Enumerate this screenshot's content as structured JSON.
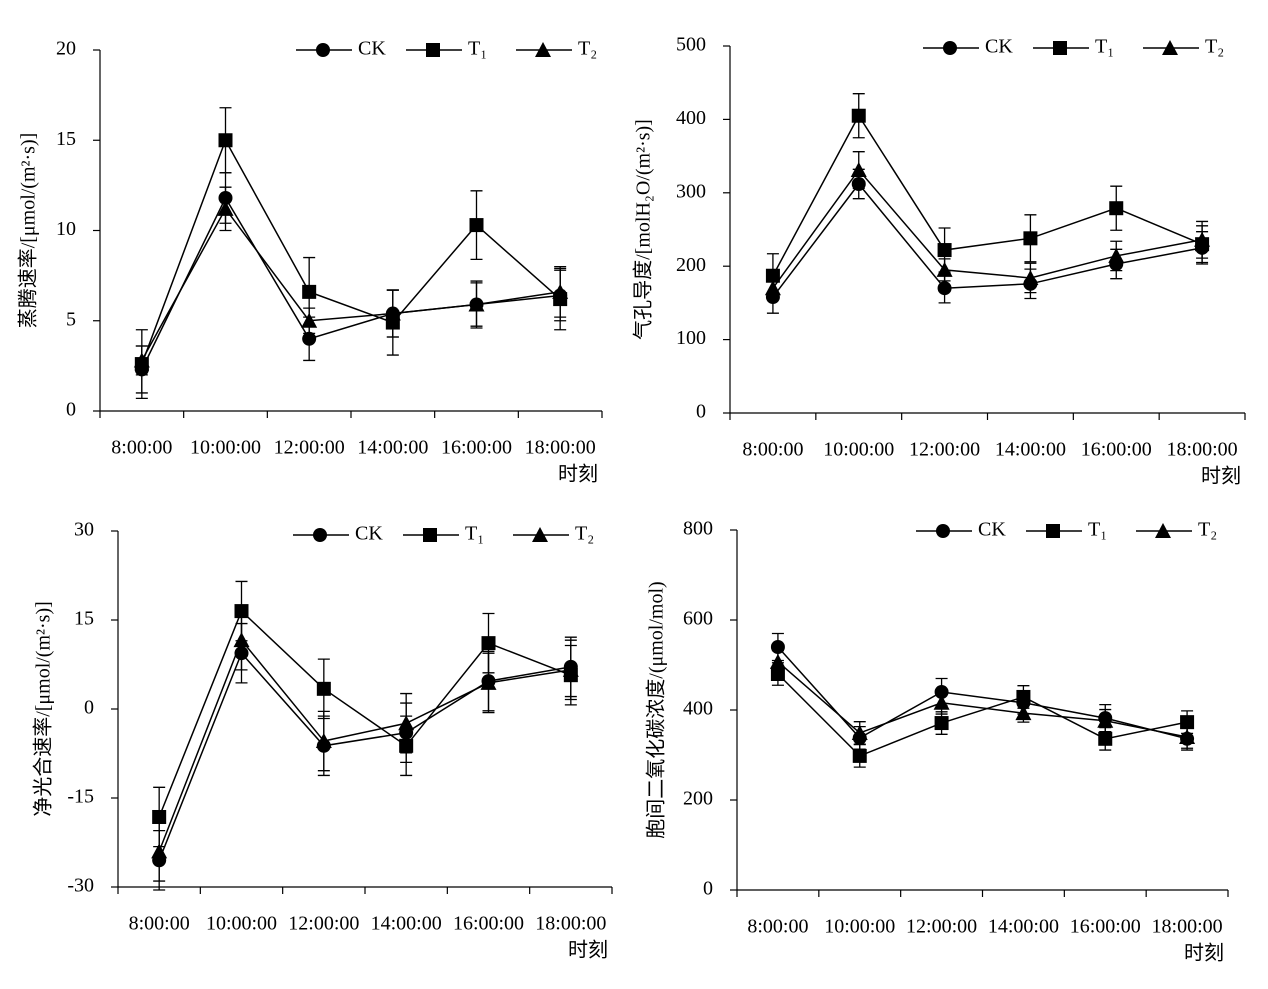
{
  "chart_data": [
    {
      "type": "line",
      "y_label": "蒸腾速率/[μmol/(m²·s)]",
      "x_label": "时刻",
      "categories": [
        "8:00:00",
        "10:00:00",
        "12:00:00",
        "14:00:00",
        "16:00:00",
        "18:00:00"
      ],
      "ylim": [
        0,
        20
      ],
      "yticks": [
        0,
        5,
        10,
        15,
        20
      ],
      "legend": "top-right",
      "series": [
        {
          "name": "CK",
          "color": "#000000",
          "marker": "circle",
          "values": [
            2.3,
            11.8,
            4.0,
            5.4,
            5.9,
            6.4
          ],
          "errors": [
            1.3,
            1.4,
            1.2,
            1.3,
            1.2,
            1.4
          ]
        },
        {
          "name": "T₁",
          "color": "#000000",
          "marker": "square",
          "values": [
            2.6,
            15.0,
            6.6,
            4.9,
            10.3,
            6.2
          ],
          "errors": [
            1.9,
            1.8,
            1.9,
            1.8,
            1.9,
            1.7
          ]
        },
        {
          "name": "T₂",
          "color": "#000000",
          "marker": "triangle",
          "values": [
            2.8,
            11.2,
            5.0,
            5.4,
            5.9,
            6.6
          ],
          "errors": [
            0.8,
            1.2,
            0.7,
            1.3,
            1.3,
            1.4
          ]
        }
      ]
    },
    {
      "type": "line",
      "y_label": "气孔导度/[molH₂O/(m²·s)]",
      "x_label": "时刻",
      "categories": [
        "8:00:00",
        "10:00:00",
        "12:00:00",
        "14:00:00",
        "16:00:00",
        "18:00:00"
      ],
      "ylim": [
        0,
        500
      ],
      "yticks": [
        0,
        100,
        200,
        300,
        400,
        500
      ],
      "legend": "top-right",
      "series": [
        {
          "name": "CK",
          "color": "#000000",
          "marker": "circle",
          "values": [
            158,
            312,
            170,
            176,
            203,
            225
          ],
          "errors": [
            22,
            20,
            20,
            20,
            20,
            22
          ]
        },
        {
          "name": "T₁",
          "color": "#000000",
          "marker": "square",
          "values": [
            187,
            405,
            222,
            238,
            279,
            230
          ],
          "errors": [
            30,
            30,
            30,
            32,
            30,
            25
          ]
        },
        {
          "name": "T₂",
          "color": "#000000",
          "marker": "triangle",
          "values": [
            170,
            331,
            195,
            184,
            214,
            236
          ],
          "errors": [
            15,
            25,
            15,
            20,
            20,
            25
          ]
        }
      ]
    },
    {
      "type": "line",
      "y_label": "净光合速率/[μmol/(m²·s)]",
      "x_label": "时刻",
      "categories": [
        "8:00:00",
        "10:00:00",
        "12:00:00",
        "14:00:00",
        "16:00:00",
        "18:00:00"
      ],
      "ylim": [
        -30,
        30
      ],
      "yticks": [
        -30,
        -15,
        0,
        15,
        30
      ],
      "legend": "top-right",
      "series": [
        {
          "name": "CK",
          "color": "#000000",
          "marker": "circle",
          "values": [
            -25.5,
            9.4,
            -6.2,
            -4.0,
            4.7,
            7.1
          ],
          "errors": [
            5,
            5,
            5,
            5,
            5,
            5
          ]
        },
        {
          "name": "T₁",
          "color": "#000000",
          "marker": "square",
          "values": [
            -18.2,
            16.5,
            3.4,
            -6.2,
            11.1,
            5.7
          ],
          "errors": [
            5,
            5,
            5,
            5,
            5,
            5
          ]
        },
        {
          "name": "T₂",
          "color": "#000000",
          "marker": "triangle",
          "values": [
            -24,
            11.6,
            -5.4,
            -2.4,
            4.4,
            6.6
          ],
          "errors": [
            5,
            5,
            5,
            5,
            5,
            5
          ]
        }
      ]
    },
    {
      "type": "line",
      "y_label": "胞间二氧化碳浓度/(μmol/mol)",
      "x_label": "时刻",
      "categories": [
        "8:00:00",
        "10:00:00",
        "12:00:00",
        "14:00:00",
        "16:00:00",
        "18:00:00"
      ],
      "ylim": [
        0,
        800
      ],
      "yticks": [
        0,
        200,
        400,
        600,
        800
      ],
      "legend": "top-right",
      "series": [
        {
          "name": "CK",
          "color": "#000000",
          "marker": "circle",
          "values": [
            540,
            338,
            440,
            416,
            382,
            336
          ],
          "errors": [
            30,
            25,
            30,
            25,
            30,
            25
          ]
        },
        {
          "name": "T₁",
          "color": "#000000",
          "marker": "square",
          "values": [
            480,
            298,
            371,
            429,
            336,
            373
          ],
          "errors": [
            25,
            25,
            25,
            25,
            25,
            25
          ]
        },
        {
          "name": "T₂",
          "color": "#000000",
          "marker": "triangle",
          "values": [
            507,
            349,
            416,
            393,
            376,
            340
          ],
          "errors": [
            25,
            25,
            25,
            20,
            25,
            25
          ]
        }
      ]
    }
  ]
}
